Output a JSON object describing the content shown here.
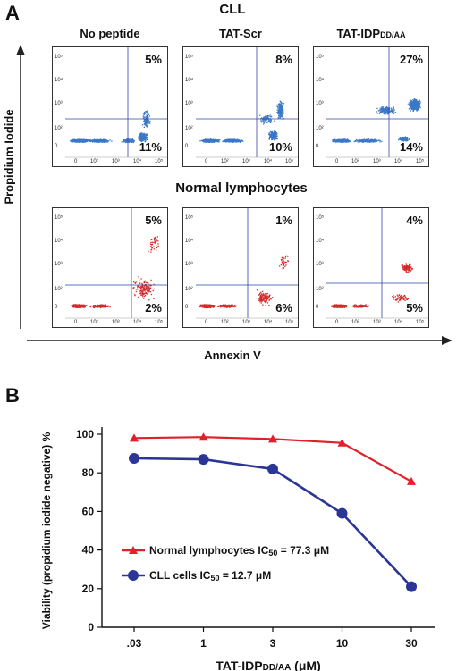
{
  "panel_a": {
    "letter": "A",
    "cll_title": "CLL",
    "normal_title": "Normal lymphocytes",
    "y_axis_label": "Propidium Iodide",
    "x_axis_label": "Annexin V",
    "columns": [
      "No peptide",
      "TAT-Scr",
      "TAT-IDP"
    ],
    "column_subscript": "DD/AA",
    "y_ticks": [
      "10⁵",
      "10⁴",
      "10³",
      "10²",
      "0"
    ],
    "x_ticks": [
      "0",
      "10²",
      "10³",
      "10⁴",
      "10⁵"
    ],
    "cll_top_right": [
      "5%",
      "8%",
      "27%"
    ],
    "cll_bottom_right": [
      "11%",
      "10%",
      "14%"
    ],
    "normal_top_right": [
      "5%",
      "1%",
      "4%"
    ],
    "normal_bottom_right": [
      "2%",
      "6%",
      "5%"
    ],
    "colors": {
      "cll": "#3a78c8",
      "normal": "#d42a2a",
      "gate": "#3344aa"
    }
  },
  "panel_b": {
    "letter": "B",
    "chart_data": {
      "type": "line",
      "categories": [
        ".03",
        "1",
        "3",
        "10",
        "30"
      ],
      "ylim": [
        0,
        100
      ],
      "yticks": [
        0,
        20,
        40,
        60,
        80,
        100
      ],
      "ylabel": "Viability (propidium iodide negative) %",
      "xlabel_main": "TAT-IDP",
      "xlabel_sub": "DD/AA",
      "xlabel_unit": " (μM)",
      "series": [
        {
          "name": "Normal lymphocytes",
          "ic_label": "IC",
          "ic_sub": "50",
          "ic_value": " = 77.3 μM",
          "values": [
            98,
            98.5,
            97.5,
            95.5,
            75.5
          ],
          "color": "#e0202a",
          "marker": "triangle"
        },
        {
          "name": "CLL cells",
          "ic_label": "IC",
          "ic_sub": "50",
          "ic_value": " = 12.7 μM",
          "values": [
            87.5,
            87,
            82,
            59,
            21
          ],
          "color": "#2a3596",
          "marker": "circle"
        }
      ]
    }
  }
}
